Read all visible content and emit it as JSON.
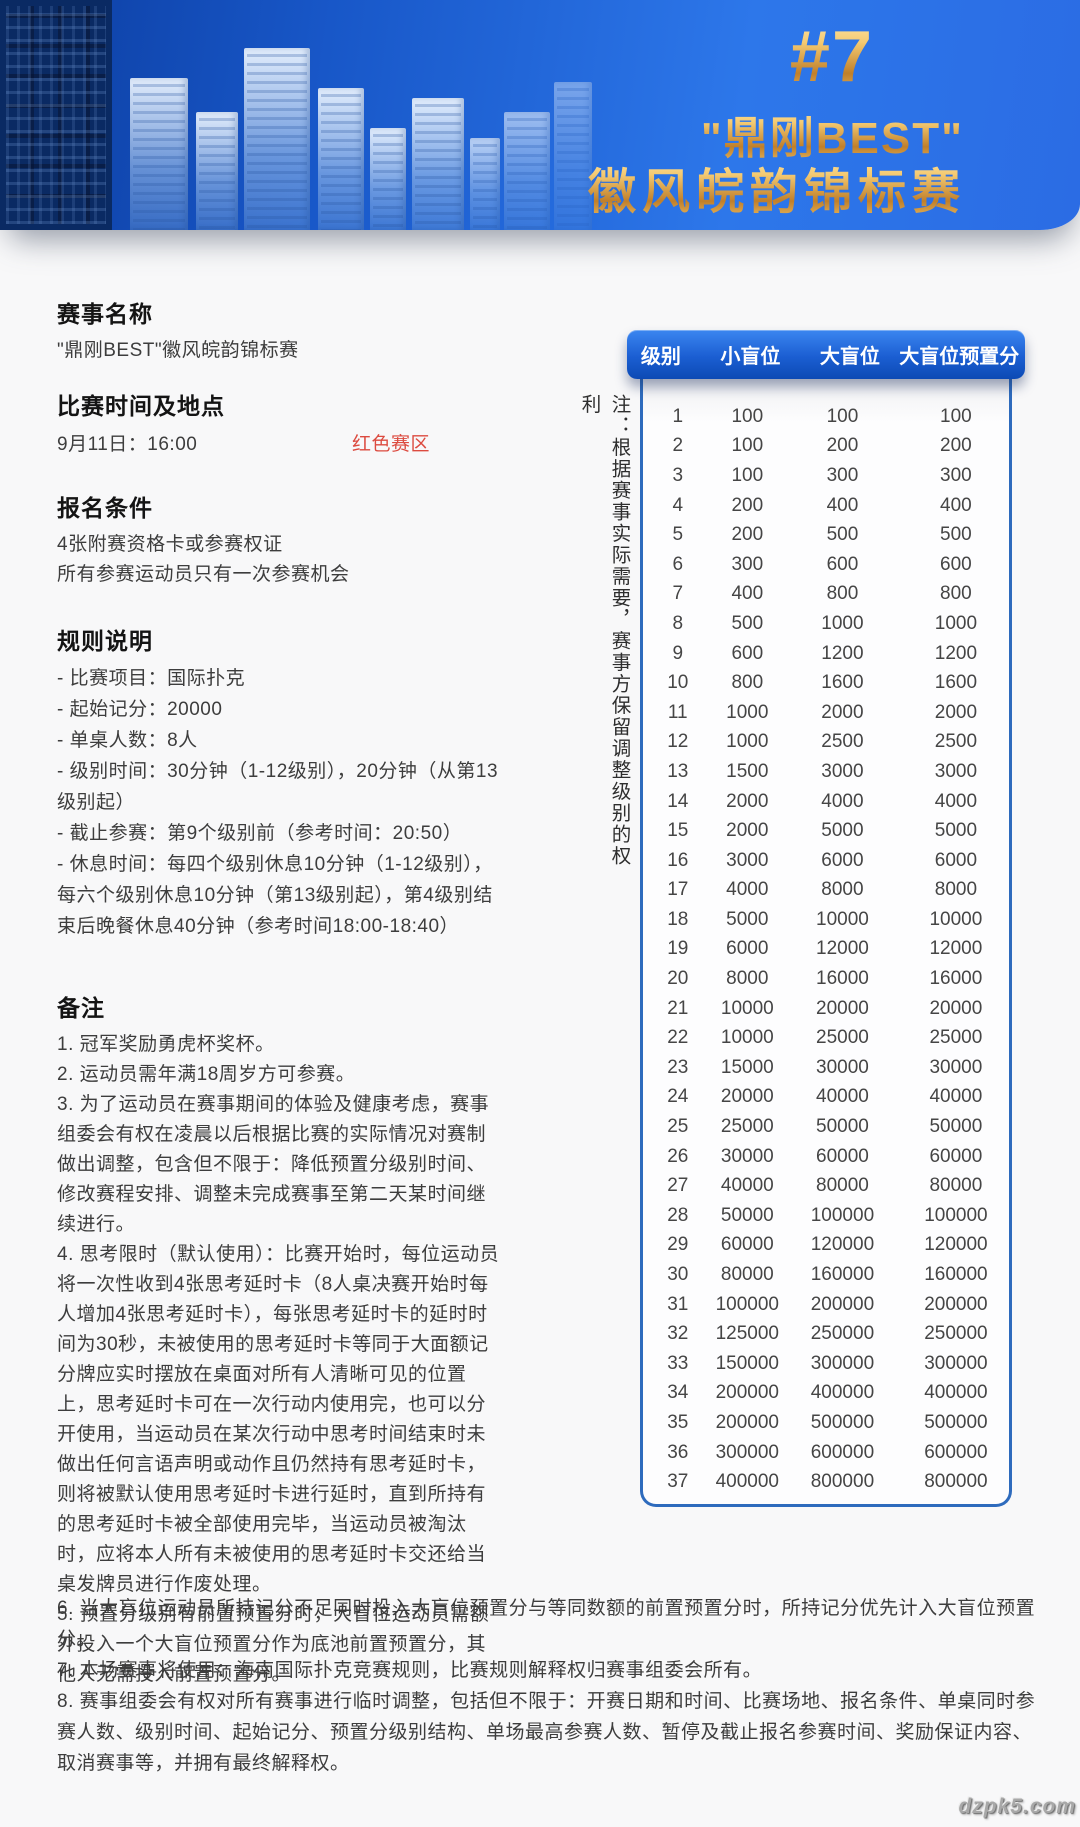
{
  "banner": {
    "badge": "#7",
    "title_line1": "\"鼎刚BEST\"",
    "title_line2": "徽风皖韵锦标赛"
  },
  "sections": {
    "event_name": {
      "heading": "赛事名称",
      "value": "\"鼎刚BEST\"徽风皖韵锦标赛"
    },
    "schedule": {
      "heading": "比赛时间及地点",
      "datetime": "9月11日：16:00",
      "zone": "红色赛区"
    },
    "registration": {
      "heading": "报名条件",
      "lines": [
        "4张附赛资格卡或参赛权证",
        "所有参赛运动员只有一次参赛机会"
      ]
    },
    "rules": {
      "heading": "规则说明",
      "items": [
        "- 比赛项目：国际扑克",
        "- 起始记分：20000",
        "- 单桌人数：8人",
        "- 级别时间：30分钟（1-12级别），20分钟（从第13级别起）",
        "- 截止参赛：第9个级别前（参考时间：20:50）",
        "- 休息时间：每四个级别休息10分钟（1-12级别），每六个级别休息10分钟（第13级别起），第4级别结束后晚餐休息40分钟（参考时间18:00-18:40）"
      ]
    },
    "notes": {
      "heading": "备注",
      "items": [
        "1. 冠军奖励勇虎杯奖杯。",
        "2. 运动员需年满18周岁方可参赛。",
        "3. 为了运动员在赛事期间的体验及健康考虑，赛事组委会有权在凌晨以后根据比赛的实际情况对赛制做出调整，包含但不限于：降低预置分级别时间、修改赛程安排、调整未完成赛事至第二天某时间继续进行。",
        "4. 思考限时（默认使用）：比赛开始时，每位运动员将一次性收到4张思考延时卡（8人桌决赛开始时每人增加4张思考延时卡），每张思考延时卡的延时时间为30秒，未被使用的思考延时卡等同于大面额记分牌应实时摆放在桌面对所有人清晰可见的位置上，思考延时卡可在一次行动内使用完，也可以分开使用，当运动员在某次行动中思考时间结束时未做出任何言语声明或动作且仍然持有思考延时卡，则将被默认使用思考延时卡进行延时，直到所持有的思考延时卡被全部使用完毕，当运动员被淘汰时，应将本人所有未被使用的思考延时卡交还给当桌发牌员进行作废处理。",
        "5. 预置分级别有前置预置分时，大盲位运动员需额外投入一个大盲位预置分作为底池前置预置分，其他人无需投入前置预置分。",
        "6. 当大盲位运动员所持记分不足同时投入大盲位预置分与等同数额的前置预置分时，所持记分优先计入大盲位预置分。",
        "7. 本场赛事将使用：海南国际扑克竞赛规则，比赛规则解释权归赛事组委会所有。",
        "8. 赛事组委会有权对所有赛事进行临时调整，包括但不限于：开赛日期和时间、比赛场地、报名条件、单桌同时参赛人数、级别时间、起始记分、预置分级别结构、单场最高参赛人数、暂停及截止报名参赛时间、奖励保证内容、取消赛事等，并拥有最终解释权。"
      ],
      "narrow_count": 5
    }
  },
  "blinds_table": {
    "note_vertical": "注：根据赛事实际需要，赛事方保留调整级别的权利",
    "headers": [
      "级别",
      "小盲位",
      "大盲位",
      "大盲位预置分"
    ],
    "rows": [
      [
        1,
        100,
        100,
        100
      ],
      [
        2,
        100,
        200,
        200
      ],
      [
        3,
        100,
        300,
        300
      ],
      [
        4,
        200,
        400,
        400
      ],
      [
        5,
        200,
        500,
        500
      ],
      [
        6,
        300,
        600,
        600
      ],
      [
        7,
        400,
        800,
        800
      ],
      [
        8,
        500,
        1000,
        1000
      ],
      [
        9,
        600,
        1200,
        1200
      ],
      [
        10,
        800,
        1600,
        1600
      ],
      [
        11,
        1000,
        2000,
        2000
      ],
      [
        12,
        1000,
        2500,
        2500
      ],
      [
        13,
        1500,
        3000,
        3000
      ],
      [
        14,
        2000,
        4000,
        4000
      ],
      [
        15,
        2000,
        5000,
        5000
      ],
      [
        16,
        3000,
        6000,
        6000
      ],
      [
        17,
        4000,
        8000,
        8000
      ],
      [
        18,
        5000,
        10000,
        10000
      ],
      [
        19,
        6000,
        12000,
        12000
      ],
      [
        20,
        8000,
        16000,
        16000
      ],
      [
        21,
        10000,
        20000,
        20000
      ],
      [
        22,
        10000,
        25000,
        25000
      ],
      [
        23,
        15000,
        30000,
        30000
      ],
      [
        24,
        20000,
        40000,
        40000
      ],
      [
        25,
        25000,
        50000,
        50000
      ],
      [
        26,
        30000,
        60000,
        60000
      ],
      [
        27,
        40000,
        80000,
        80000
      ],
      [
        28,
        50000,
        100000,
        100000
      ],
      [
        29,
        60000,
        120000,
        120000
      ],
      [
        30,
        80000,
        160000,
        160000
      ],
      [
        31,
        100000,
        200000,
        200000
      ],
      [
        32,
        125000,
        250000,
        250000
      ],
      [
        33,
        150000,
        300000,
        300000
      ],
      [
        34,
        200000,
        400000,
        400000
      ],
      [
        35,
        200000,
        500000,
        500000
      ],
      [
        36,
        300000,
        600000,
        600000
      ],
      [
        37,
        400000,
        800000,
        800000
      ]
    ]
  },
  "page": {
    "watermark": "dzpk5.com"
  },
  "colors": {
    "banner_blue": "#1e63d6",
    "banner_dark_strip": "#0a2a63",
    "gold": "#e8b45a",
    "table_header_blue": "#1b5ed2",
    "table_border_blue": "#2e6bbd",
    "zone_red": "#dc4b40"
  }
}
